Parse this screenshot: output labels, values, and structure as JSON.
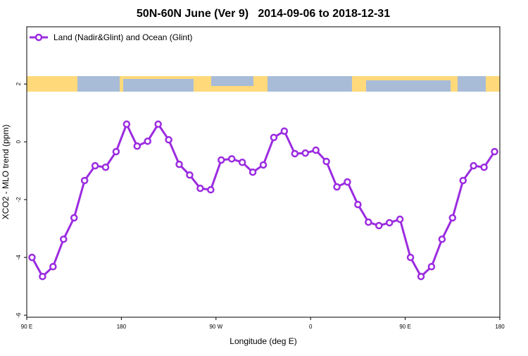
{
  "chart_data": {
    "type": "line",
    "title": "50N-60N June (Ver 9)   2014-09-06 to 2018-12-31",
    "x_label": "Longitude (deg E)",
    "y_label": "XCO2 - MLO trend (ppm)",
    "x": [
      95,
      105,
      115,
      125,
      135,
      145,
      155,
      165,
      175,
      185,
      195,
      205,
      215,
      225,
      235,
      245,
      255,
      265,
      275,
      285,
      295,
      305,
      315,
      325,
      335,
      345,
      355,
      365,
      375,
      385,
      395,
      405,
      415,
      425,
      435,
      445,
      455,
      465,
      475,
      485,
      495,
      505,
      515,
      525,
      535
    ],
    "series": [
      {
        "name": "Land (Nadir&Glint) and Ocean (Glint)",
        "color": "#9b2be0",
        "values": [
          -4.0,
          -4.66,
          -4.32,
          -3.37,
          -2.63,
          -1.34,
          -0.83,
          -0.88,
          -0.34,
          0.61,
          -0.15,
          0.02,
          0.61,
          0.07,
          -0.78,
          -1.15,
          -1.61,
          -1.66,
          -0.63,
          -0.59,
          -0.71,
          -1.05,
          -0.8,
          0.15,
          0.37,
          -0.41,
          -0.39,
          -0.29,
          -0.68,
          -1.56,
          -1.39,
          -2.17,
          -2.78,
          -2.9,
          -2.8,
          -2.68,
          -4.0,
          -4.66,
          -4.32,
          -3.37,
          -2.63,
          -1.34,
          -0.83,
          -0.88,
          -0.34
        ]
      }
    ],
    "xlim": [
      90,
      540
    ],
    "xticks": [
      {
        "value": 90,
        "label": "90 E"
      },
      {
        "value": 180,
        "label": "180"
      },
      {
        "value": 270,
        "label": "90 W"
      },
      {
        "value": 360,
        "label": "0"
      },
      {
        "value": 450,
        "label": "90 E"
      },
      {
        "value": 540,
        "label": "180"
      }
    ],
    "ylim": [
      -6.07,
      3.98
    ],
    "yticks": [
      -6,
      -4,
      -2,
      0,
      2
    ],
    "legend": "top-left"
  }
}
